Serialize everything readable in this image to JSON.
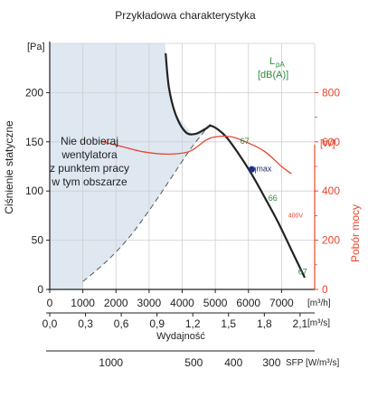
{
  "chart_data": {
    "type": "line",
    "title": "Przykładowa charakterystyka",
    "ylabel_left": "Ciśnienie statyczne",
    "ylabel_left_unit": "[Pa]",
    "ylabel_right": "Pobór mocy",
    "ylabel_right_unit": "[W]",
    "xlabel": "Wydajność",
    "x_unit_primary": "[m³/h]",
    "x_unit_secondary": "[m³/s]",
    "x_unit_sfp": "SFP [W/m³/s]",
    "xlim": [
      0,
      8000
    ],
    "ylim_left": [
      0,
      250
    ],
    "ylim_right": [
      0,
      1000
    ],
    "x_ticks": [
      "0",
      "1000",
      "2000",
      "3000",
      "4000",
      "5000",
      "6000",
      "7000"
    ],
    "x_tick_values": [
      0,
      1000,
      2000,
      3000,
      4000,
      5000,
      6000,
      7000
    ],
    "x2_ticks": [
      "0,0",
      "0,3",
      "0,6",
      "0,9",
      "1,2",
      "1,5",
      "1,8",
      "2,1"
    ],
    "x2_tick_values": [
      0,
      1080,
      2160,
      3240,
      4320,
      5400,
      6480,
      7560
    ],
    "sfp_ticks": [
      "1000",
      "500",
      "400",
      "300"
    ],
    "sfp_tick_values": [
      1850,
      4350,
      5550,
      6700
    ],
    "y_left_ticks": [
      0,
      50,
      100,
      150,
      200
    ],
    "y_right_ticks": [
      0,
      200,
      400,
      600,
      800
    ],
    "legend": {
      "title": "L",
      "sub": "pA",
      "unit": "[dB(A)]"
    },
    "note": [
      "Nie dobieraj",
      "wentylatora",
      "z punktem pracy",
      "w tym obszarze"
    ],
    "series": [
      {
        "name": "Ciśnienie statyczne",
        "axis": "left",
        "color": "#222222",
        "x": [
          3500,
          3600,
          3800,
          4100,
          4400,
          4700,
          4900,
          5300,
          5700,
          6100,
          6500,
          6900,
          7300,
          7700
        ],
        "y": [
          240,
          205,
          178,
          160,
          158,
          163,
          166,
          156,
          138,
          117,
          93,
          68,
          40,
          12
        ]
      },
      {
        "name": "Pobór mocy",
        "axis": "right",
        "color": "#e8452c",
        "x": [
          1600,
          2200,
          2800,
          3500,
          4200,
          4700,
          5000,
          5500,
          6000,
          6500,
          7000,
          7300
        ],
        "y": [
          600,
          580,
          560,
          550,
          560,
          605,
          620,
          620,
          595,
          560,
          500,
          470
        ]
      }
    ],
    "boundary": {
      "name": "Granica obszaru",
      "x": [
        1000,
        1700,
        2400,
        3100,
        3700,
        4300,
        4850
      ],
      "y": [
        8,
        28,
        53,
        85,
        115,
        145,
        168
      ]
    },
    "annotations": [
      {
        "text": "67",
        "x": 5750,
        "y": 148,
        "color": "#2e8b3e"
      },
      {
        "text": "66",
        "x": 6600,
        "y": 90,
        "color": "#2e8b3e"
      },
      {
        "text": "67",
        "x": 7500,
        "y": 15,
        "color": "#2e8b3e"
      },
      {
        "text": "400V",
        "x": 7200,
        "y": 73,
        "color": "#e8452c"
      },
      {
        "text": "ηmax",
        "x": 6100,
        "y": 120,
        "color": "#1e2e6e"
      }
    ],
    "eta_max_point": {
      "x": 6100,
      "y": 122
    },
    "grid": true,
    "legend_position": "top-right"
  }
}
